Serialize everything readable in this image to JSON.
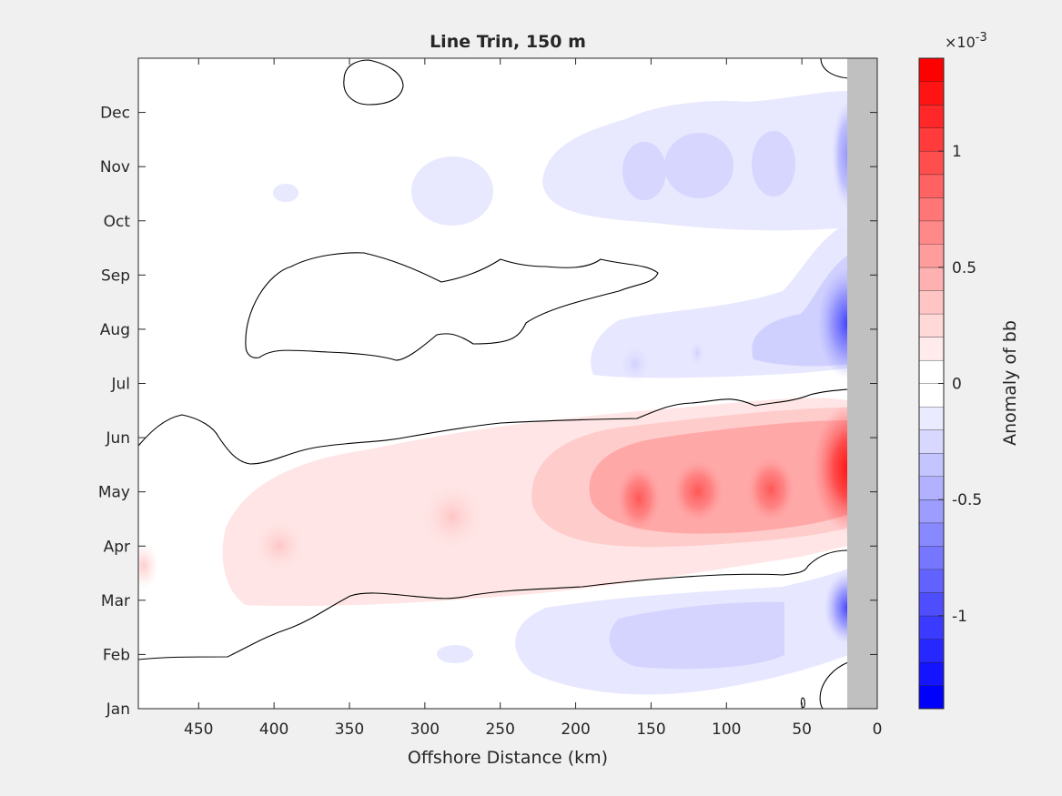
{
  "chart_data": {
    "type": "heatmap",
    "subtype": "filled-contour",
    "title": "Line Trin, 150 m",
    "xlabel": "Offshore Distance (km)",
    "ylabel": "",
    "xlim": [
      0,
      490
    ],
    "x_reversed": true,
    "x_ticks": [
      450,
      400,
      350,
      300,
      250,
      200,
      150,
      100,
      50,
      0
    ],
    "ylim": [
      0,
      12
    ],
    "y_tick_labels": [
      "Jan",
      "Feb",
      "Mar",
      "Apr",
      "May",
      "Jun",
      "Jul",
      "Aug",
      "Sep",
      "Oct",
      "Nov",
      "Dec"
    ],
    "land_mask": {
      "x_range": [
        0,
        20
      ],
      "color": "#c0c0c0"
    },
    "zero_contour_color": "#000000",
    "colorbar": {
      "label": "Anomaly of bb",
      "exponent_label": "×10",
      "exponent_power": "-3",
      "limits": [
        -1.4,
        1.4
      ],
      "level_step": 0.1,
      "tick_values": [
        -1,
        -0.5,
        0,
        0.5,
        1
      ],
      "tick_labels": [
        "-1",
        "-0.5",
        "0",
        "0.5",
        "1"
      ],
      "negative_color": "#0000ff",
      "positive_color": "#ff0000",
      "zero_color": "#ffffff"
    },
    "features": [
      {
        "name": "spring-positive-anomaly",
        "x": [
          20,
          480
        ],
        "month": [
          3.8,
          5.6
        ],
        "max_value": 1.35,
        "peak_x": 22,
        "peak_month": 4.85
      },
      {
        "name": "summer-negative-anomaly",
        "x": [
          20,
          180
        ],
        "month": [
          6.2,
          8.2
        ],
        "min_value": -0.9,
        "peak_x": 22,
        "peak_month": 7.0
      },
      {
        "name": "autumn-negative-anomaly",
        "x": [
          20,
          230
        ],
        "month": [
          9.4,
          11.4
        ],
        "min_value": -0.5
      },
      {
        "name": "winter-negative-anomaly",
        "x": [
          20,
          200
        ],
        "month": [
          0.2,
          2.6
        ],
        "min_value": -0.6
      }
    ]
  }
}
